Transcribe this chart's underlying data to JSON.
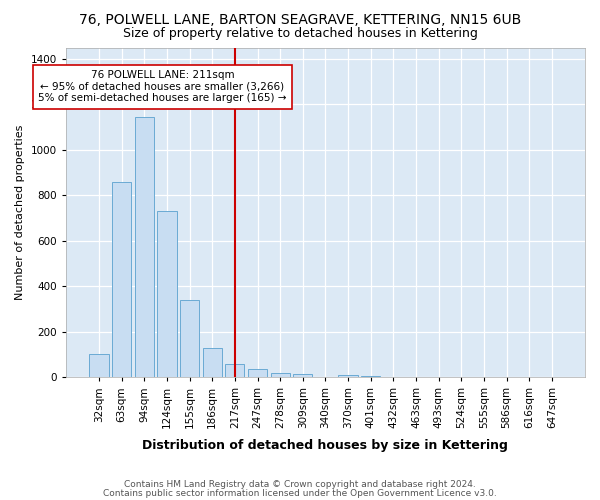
{
  "title1": "76, POLWELL LANE, BARTON SEAGRAVE, KETTERING, NN15 6UB",
  "title2": "Size of property relative to detached houses in Kettering",
  "xlabel": "Distribution of detached houses by size in Kettering",
  "ylabel": "Number of detached properties",
  "footer1": "Contains HM Land Registry data © Crown copyright and database right 2024.",
  "footer2": "Contains public sector information licensed under the Open Government Licence v3.0.",
  "categories": [
    "32sqm",
    "63sqm",
    "94sqm",
    "124sqm",
    "155sqm",
    "186sqm",
    "217sqm",
    "247sqm",
    "278sqm",
    "309sqm",
    "340sqm",
    "370sqm",
    "401sqm",
    "432sqm",
    "463sqm",
    "493sqm",
    "524sqm",
    "555sqm",
    "586sqm",
    "616sqm",
    "647sqm"
  ],
  "values": [
    100,
    860,
    1145,
    730,
    340,
    130,
    60,
    35,
    20,
    15,
    0,
    10,
    5,
    0,
    0,
    0,
    0,
    0,
    0,
    0,
    0
  ],
  "bar_color": "#c8ddf2",
  "bar_edge_color": "#6aaad4",
  "vline_index": 6,
  "vline_color": "#cc0000",
  "annotation_text": "76 POLWELL LANE: 211sqm\n← 95% of detached houses are smaller (3,266)\n5% of semi-detached houses are larger (165) →",
  "annotation_box_facecolor": "#ffffff",
  "annotation_box_edgecolor": "#cc0000",
  "ylim": [
    0,
    1450
  ],
  "fig_bg": "#ffffff",
  "plot_bg": "#dce9f5",
  "grid_color": "#ffffff",
  "title1_fontsize": 10,
  "title2_fontsize": 9,
  "ylabel_fontsize": 8,
  "xlabel_fontsize": 9,
  "tick_fontsize": 7.5,
  "footer_fontsize": 6.5
}
